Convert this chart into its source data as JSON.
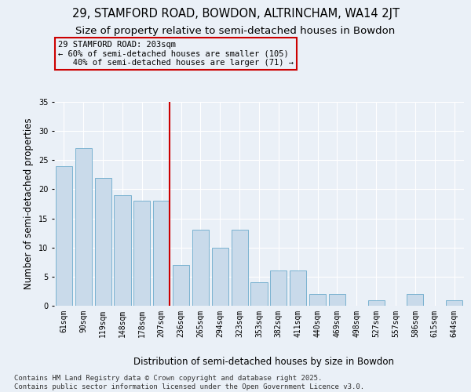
{
  "title": "29, STAMFORD ROAD, BOWDON, ALTRINCHAM, WA14 2JT",
  "subtitle": "Size of property relative to semi-detached houses in Bowdon",
  "xlabel": "Distribution of semi-detached houses by size in Bowdon",
  "ylabel": "Number of semi-detached properties",
  "categories": [
    "61sqm",
    "90sqm",
    "119sqm",
    "148sqm",
    "178sqm",
    "207sqm",
    "236sqm",
    "265sqm",
    "294sqm",
    "323sqm",
    "353sqm",
    "382sqm",
    "411sqm",
    "440sqm",
    "469sqm",
    "498sqm",
    "527sqm",
    "557sqm",
    "586sqm",
    "615sqm",
    "644sqm"
  ],
  "values": [
    24,
    27,
    22,
    19,
    18,
    18,
    7,
    13,
    10,
    13,
    4,
    6,
    6,
    2,
    2,
    0,
    1,
    0,
    2,
    0,
    1
  ],
  "bar_color": "#c9daea",
  "bar_edge_color": "#6aaacb",
  "vline_color": "#cc0000",
  "annotation_text": "29 STAMFORD ROAD: 203sqm\n← 60% of semi-detached houses are smaller (105)\n   40% of semi-detached houses are larger (71) →",
  "annotation_box_color": "#cc0000",
  "ylim": [
    0,
    35
  ],
  "yticks": [
    0,
    5,
    10,
    15,
    20,
    25,
    30,
    35
  ],
  "footer": "Contains HM Land Registry data © Crown copyright and database right 2025.\nContains public sector information licensed under the Open Government Licence v3.0.",
  "bg_color": "#eaf0f7",
  "grid_color": "#ffffff",
  "title_fontsize": 10.5,
  "subtitle_fontsize": 9.5,
  "axis_label_fontsize": 8.5,
  "tick_fontsize": 7,
  "annotation_fontsize": 7.5,
  "footer_fontsize": 6.5
}
